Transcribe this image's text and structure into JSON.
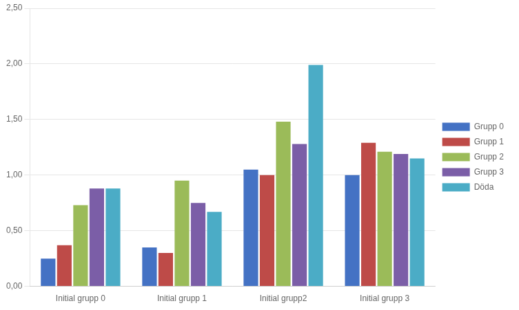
{
  "chart_data": {
    "type": "bar",
    "categories": [
      "Initial grupp 0",
      "Initial grupp 1",
      "Initial grupp2",
      "Initial grupp 3"
    ],
    "series": [
      {
        "name": "Grupp 0",
        "color": "#4472C4",
        "values": [
          0.25,
          0.35,
          1.05,
          1.0
        ]
      },
      {
        "name": "Grupp 1",
        "color": "#BE4B48",
        "values": [
          0.37,
          0.3,
          1.0,
          1.29
        ]
      },
      {
        "name": "Grupp 2",
        "color": "#9BBB59",
        "values": [
          0.73,
          0.95,
          1.48,
          1.21
        ]
      },
      {
        "name": "Grupp 3",
        "color": "#7B5EA7",
        "values": [
          0.88,
          0.75,
          1.28,
          1.19
        ]
      },
      {
        "name": "Döda",
        "color": "#4BACC6",
        "values": [
          0.88,
          0.67,
          1.99,
          1.15
        ]
      }
    ],
    "ylim": [
      0,
      2.5
    ],
    "yticks": [
      {
        "value": 0,
        "label": "0,00"
      },
      {
        "value": 0.5,
        "label": "0,50"
      },
      {
        "value": 1,
        "label": "1,00"
      },
      {
        "value": 1.5,
        "label": "1,50"
      },
      {
        "value": 2,
        "label": "2,00"
      },
      {
        "value": 2.5,
        "label": "2,50"
      }
    ],
    "grid": true,
    "legend": "right"
  }
}
